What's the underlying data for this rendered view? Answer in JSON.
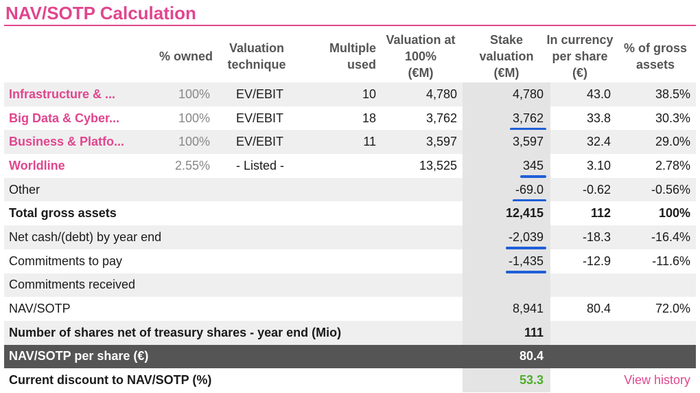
{
  "title": "NAV/SOTP Calculation",
  "headers": {
    "owned": "% owned",
    "technique_1": "Valuation",
    "technique_2": "technique",
    "multiple_1": "Multiple",
    "multiple_2": "used",
    "val100_1": "Valuation at",
    "val100_2": "100%",
    "val100_3": "(€M)",
    "stake_1": "Stake",
    "stake_2": "valuation",
    "stake_3": "(€M)",
    "currency_1": "In currency",
    "currency_2": "per share",
    "currency_3": "(€)",
    "gross_1": "% of gross",
    "gross_2": "assets"
  },
  "rows": [
    {
      "name": "Infrastructure & ...",
      "owned": "100%",
      "technique": "EV/EBIT",
      "multiple": "10",
      "val100": "4,780",
      "stake": "4,780",
      "currency": "43.0",
      "gross": "38.5%"
    },
    {
      "name": "Big Data & Cyber...",
      "owned": "100%",
      "technique": "EV/EBIT",
      "multiple": "18",
      "val100": "3,762",
      "stake": "3,762",
      "currency": "33.8",
      "gross": "30.3%"
    },
    {
      "name": "Business & Platfo...",
      "owned": "100%",
      "technique": "EV/EBIT",
      "multiple": "11",
      "val100": "3,597",
      "stake": "3,597",
      "currency": "32.4",
      "gross": "29.0%"
    },
    {
      "name": "Worldline",
      "owned": "2.55%",
      "technique": "- Listed -",
      "multiple": "",
      "val100": "13,525",
      "stake": "345",
      "currency": "3.10",
      "gross": "2.78%"
    },
    {
      "name": "Other",
      "stake": "-69.0",
      "currency": "-0.62",
      "gross": "-0.56%"
    },
    {
      "name": "Total gross assets",
      "stake": "12,415",
      "currency": "112",
      "gross": "100%"
    },
    {
      "name": "Net cash/(debt) by year end",
      "stake": "-2,039",
      "currency": "-18.3",
      "gross": "-16.4%"
    },
    {
      "name": "Commitments to pay",
      "stake": "-1,435",
      "currency": "-12.9",
      "gross": "-11.6%"
    },
    {
      "name": "Commitments received",
      "stake": "",
      "currency": "",
      "gross": ""
    },
    {
      "name": "NAV/SOTP",
      "stake": "8,941",
      "currency": "80.4",
      "gross": "72.0%"
    },
    {
      "name": "Number of shares net of treasury shares - year end (Mio)",
      "stake": "111",
      "currency": "",
      "gross": ""
    },
    {
      "name": "NAV/SOTP per share (€)",
      "stake": "80.4",
      "currency": "",
      "gross": ""
    },
    {
      "name": "Current discount to NAV/SOTP (%)",
      "stake": "53.3",
      "currency": "",
      "gross": ""
    }
  ],
  "view_history": "View history",
  "colors": {
    "accent": "#e0468e",
    "underline": "#1f5fd8",
    "positive": "#4caf2a",
    "dark_row": "#555555"
  }
}
